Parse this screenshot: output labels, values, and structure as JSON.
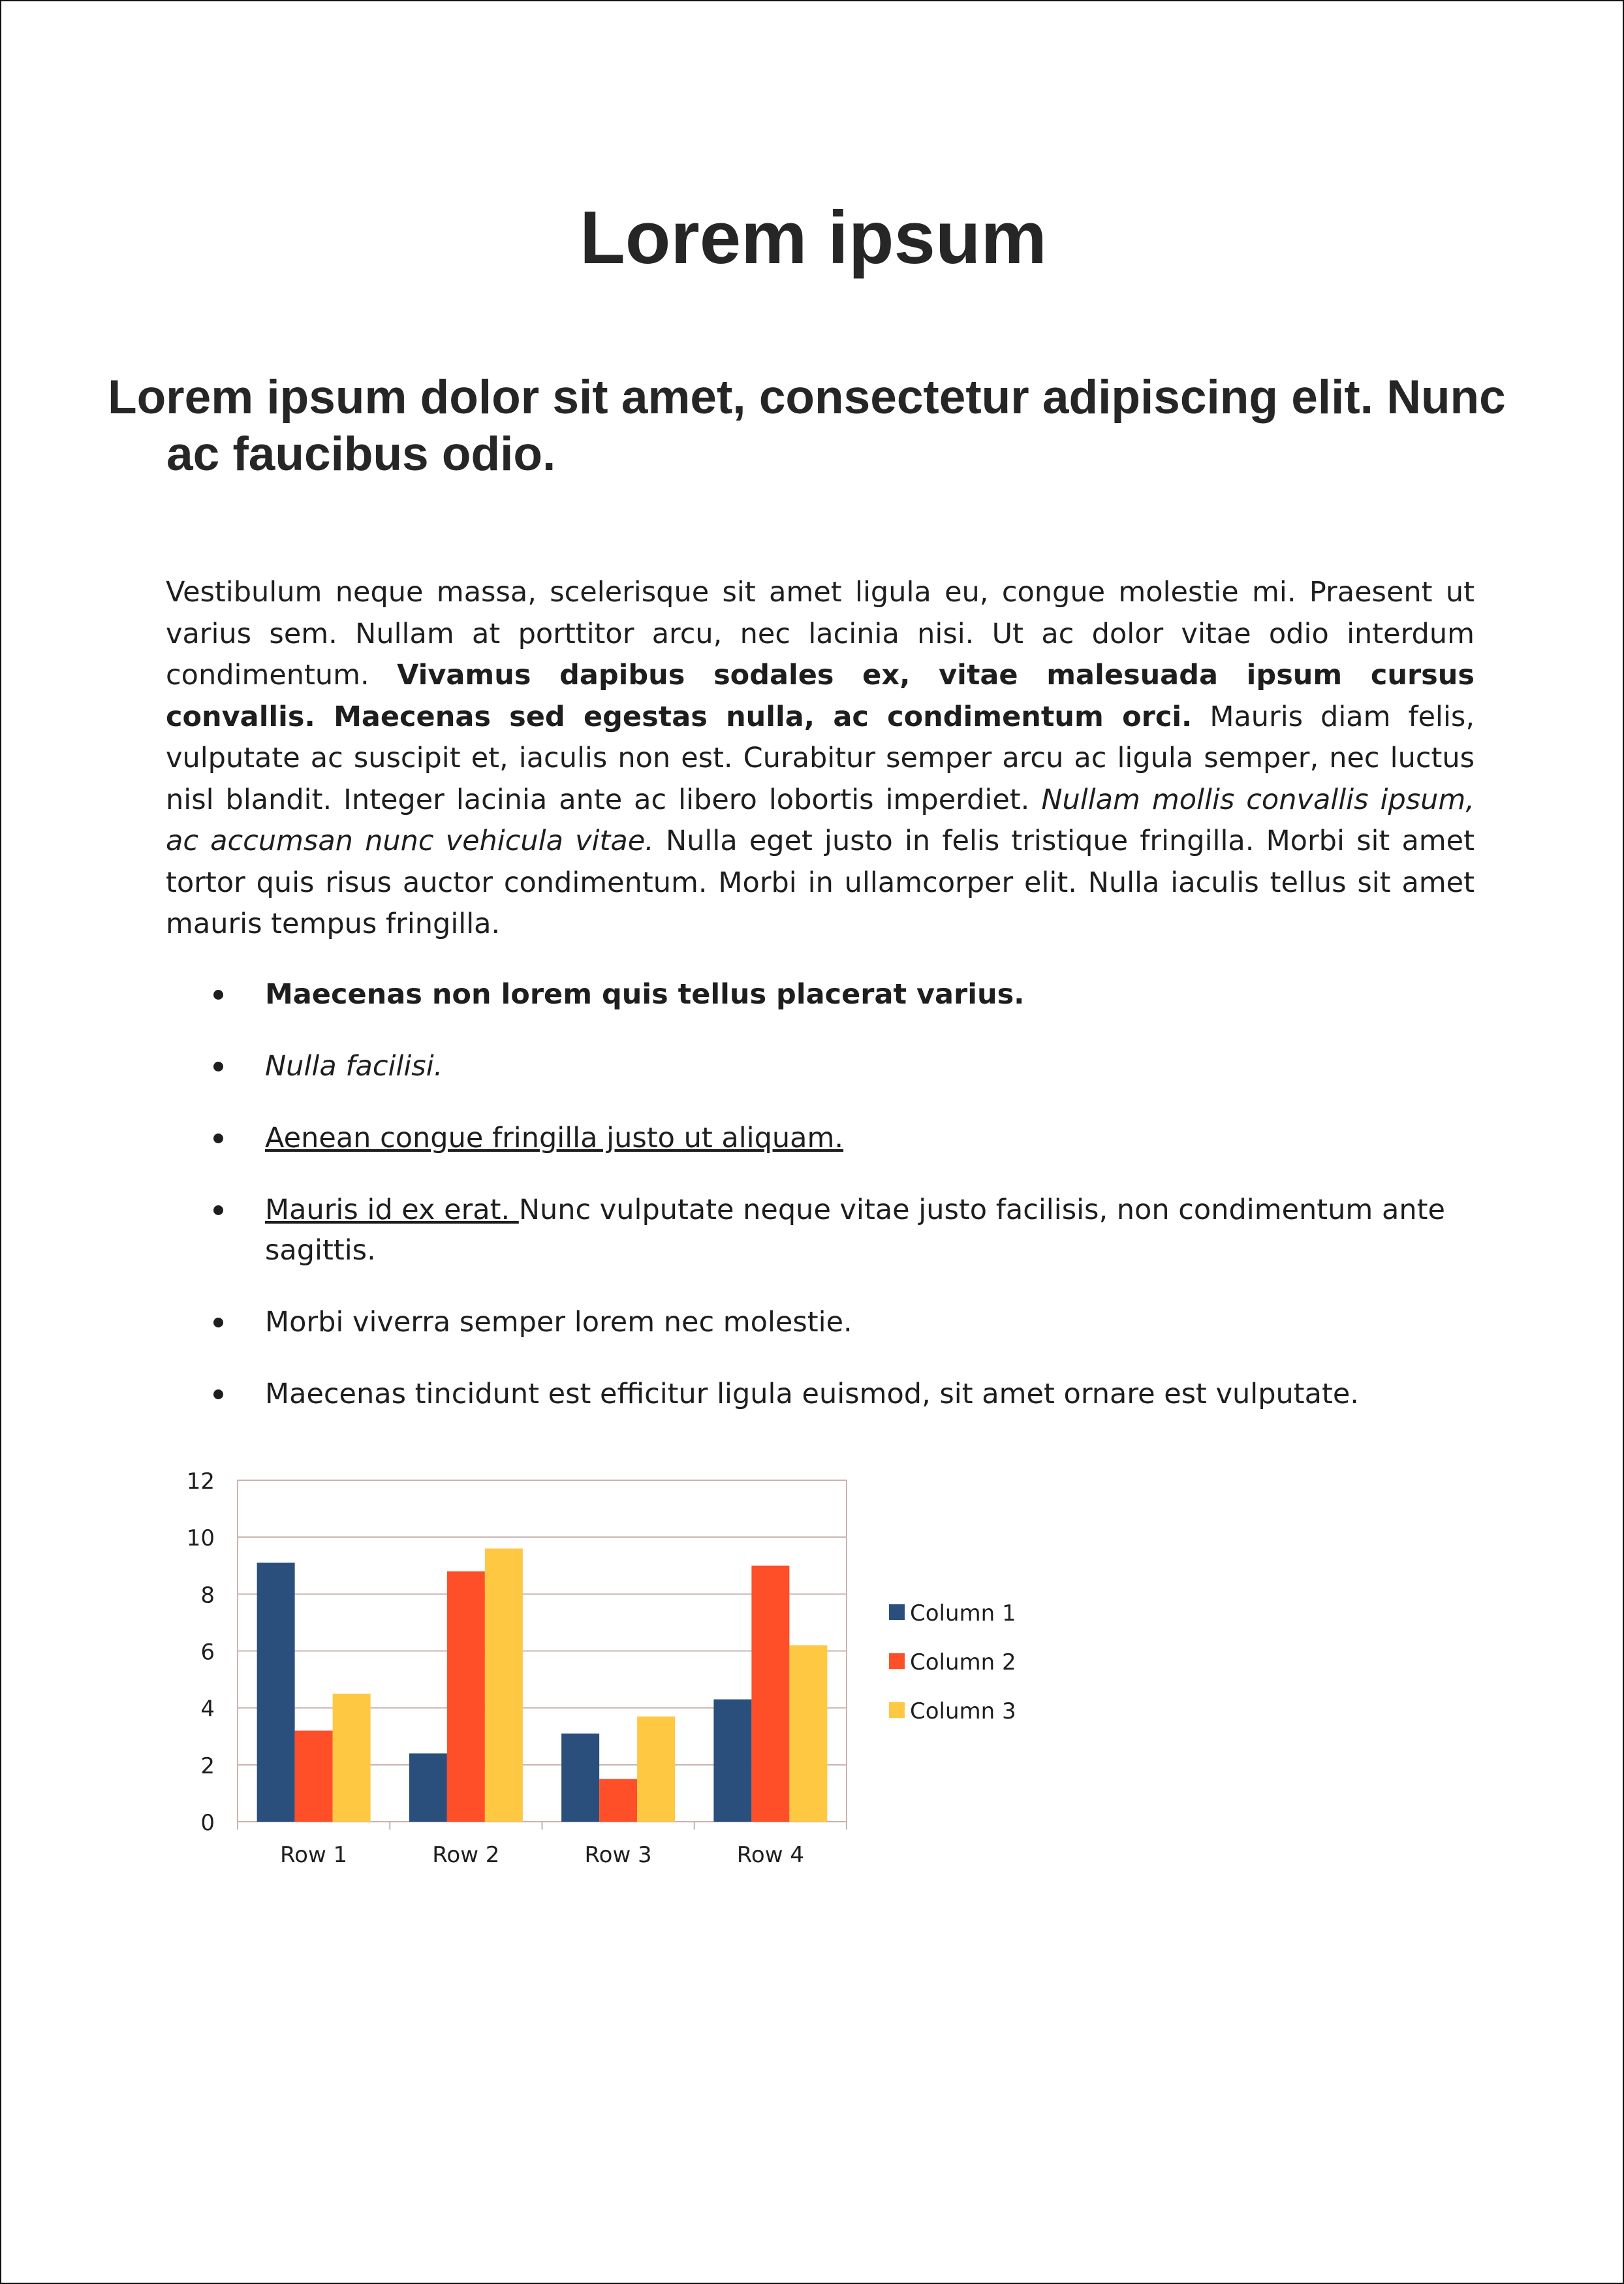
{
  "title": "Lorem ipsum",
  "subtitle": "Lorem ipsum dolor sit amet, consectetur adipiscing elit. Nunc ac faucibus odio.",
  "paragraph": {
    "part1": "Vestibulum neque massa, scelerisque sit amet ligula eu, congue molestie mi. Praesent ut varius sem. Nullam at porttitor arcu, nec lacinia nisi. Ut ac dolor vitae odio interdum condimentum. ",
    "bold": "Vivamus dapibus sodales ex, vitae malesuada ipsum cursus convallis. Maecenas sed egestas nulla, ac condimentum orci.",
    "part2": " Mauris diam felis, vulputate ac suscipit et, iaculis non est. Curabitur semper arcu ac ligula semper, nec luctus nisl blandit. Integer lacinia ante ac libero lobortis imperdiet. ",
    "italic": "Nullam mollis convallis ipsum, ac accumsan nunc vehicula vitae.",
    "part3": " Nulla eget justo in felis tristique fringilla. Morbi sit amet tortor quis risus auctor condimentum. Morbi in ullamcorper elit. Nulla iaculis tellus sit amet mauris tempus fringilla."
  },
  "bullets": {
    "b1": "Maecenas non lorem quis tellus placerat varius.",
    "b2": "Nulla facilisi.",
    "b3": "Aenean congue fringilla justo ut aliquam.",
    "b4_underlined": "Mauris id ex erat. ",
    "b4_rest": "Nunc vulputate neque vitae justo facilisis, non condimentum ante sagittis.",
    "b5": "Morbi viverra semper lorem nec molestie.",
    "b6": "Maecenas tincidunt est efficitur ligula euismod, sit amet ornare est vulputate."
  },
  "chart_data": {
    "type": "bar",
    "categories": [
      "Row 1",
      "Row 2",
      "Row 3",
      "Row 4"
    ],
    "series": [
      {
        "name": "Column 1",
        "values": [
          9.1,
          2.4,
          3.1,
          4.3
        ],
        "color": "#2a4f7c"
      },
      {
        "name": "Column 2",
        "values": [
          3.2,
          8.8,
          1.5,
          9.0
        ],
        "color": "#ff4f29"
      },
      {
        "name": "Column 3",
        "values": [
          4.5,
          9.6,
          3.7,
          6.2
        ],
        "color": "#ffc843"
      }
    ],
    "ylim": [
      0,
      12
    ],
    "yticks": [
      "0",
      "2",
      "4",
      "6",
      "8",
      "10",
      "12"
    ],
    "grid": true,
    "legend": "right",
    "gridColor": "#c9b3b0"
  }
}
